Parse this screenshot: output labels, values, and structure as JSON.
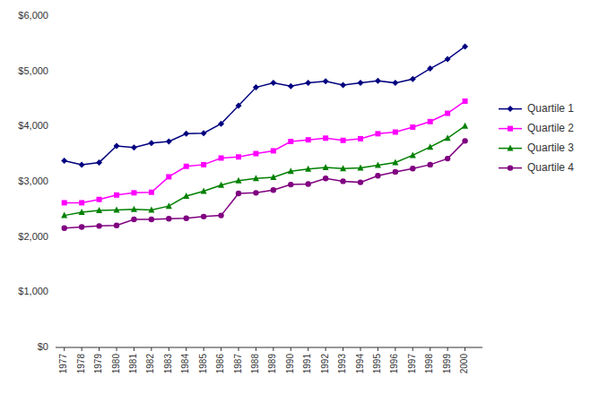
{
  "chart_data": {
    "type": "line",
    "x": [
      1977,
      1978,
      1979,
      1980,
      1981,
      1982,
      1983,
      1984,
      1985,
      1986,
      1987,
      1988,
      1989,
      1990,
      1991,
      1992,
      1993,
      1994,
      1995,
      1996,
      1997,
      1998,
      1999,
      2000
    ],
    "series": [
      {
        "name": "Quartile 1",
        "color": "#000080",
        "marker": "diamond",
        "values": [
          3380,
          3310,
          3350,
          3650,
          3620,
          3700,
          3730,
          3870,
          3880,
          4050,
          4380,
          4710,
          4790,
          4730,
          4790,
          4820,
          4750,
          4790,
          4830,
          4790,
          4860,
          5050,
          5220,
          5450
        ]
      },
      {
        "name": "Quartile 2",
        "color": "#FF00FF",
        "marker": "square",
        "values": [
          2620,
          2620,
          2680,
          2760,
          2800,
          2810,
          3090,
          3280,
          3310,
          3430,
          3450,
          3510,
          3560,
          3730,
          3760,
          3790,
          3750,
          3780,
          3870,
          3900,
          3990,
          4090,
          4240,
          4460
        ]
      },
      {
        "name": "Quartile 3",
        "color": "#008000",
        "marker": "triangle",
        "values": [
          2390,
          2450,
          2480,
          2490,
          2500,
          2490,
          2560,
          2740,
          2830,
          2940,
          3020,
          3060,
          3080,
          3190,
          3230,
          3260,
          3240,
          3250,
          3300,
          3350,
          3480,
          3630,
          3790,
          4010
        ]
      },
      {
        "name": "Quartile 4",
        "color": "#800080",
        "marker": "circle",
        "values": [
          2160,
          2180,
          2200,
          2210,
          2320,
          2320,
          2330,
          2340,
          2370,
          2390,
          2790,
          2800,
          2850,
          2950,
          2960,
          3060,
          3010,
          2990,
          3110,
          3180,
          3240,
          3310,
          3420,
          3740
        ]
      }
    ],
    "xlim": [
      1976.5,
      2001.0
    ],
    "xticks": [
      1977,
      1978,
      1979,
      1980,
      1981,
      1982,
      1983,
      1984,
      1985,
      1986,
      1987,
      1988,
      1989,
      1990,
      1991,
      1992,
      1993,
      1994,
      1995,
      1996,
      1997,
      1998,
      1999,
      2000
    ],
    "ylim": [
      0,
      6000
    ],
    "yticks": [
      {
        "value": 0,
        "label": "$0"
      },
      {
        "value": 1000,
        "label": "$1,000"
      },
      {
        "value": 2000,
        "label": "$2,000"
      },
      {
        "value": 3000,
        "label": "$3,000"
      },
      {
        "value": 4000,
        "label": "$4,000"
      },
      {
        "value": 5000,
        "label": "$5,000"
      },
      {
        "value": 6000,
        "label": "$6,000"
      }
    ],
    "grid": false,
    "legend": "right"
  }
}
